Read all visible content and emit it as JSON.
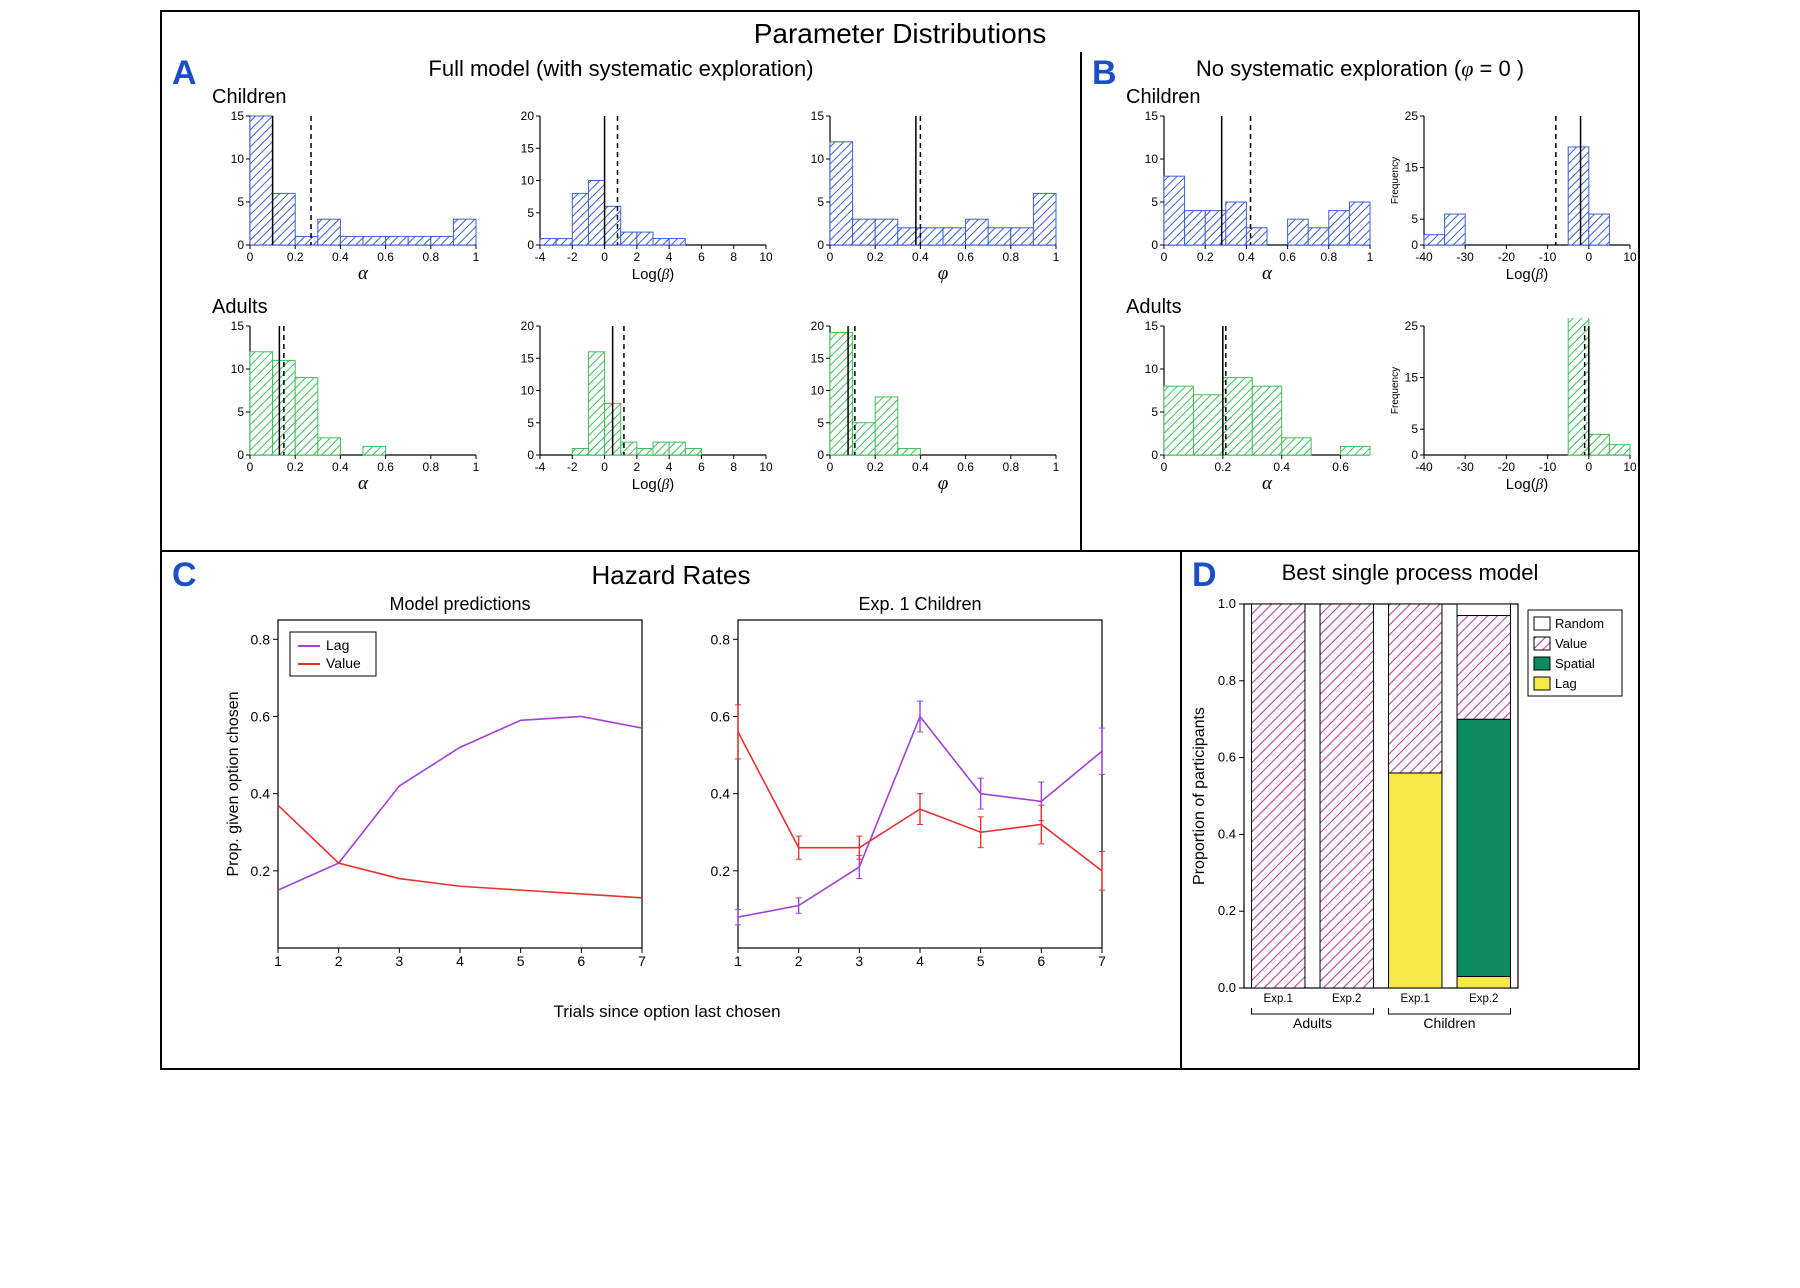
{
  "colors": {
    "blue_line": "#1a4fc7",
    "children_fill": "#ffffff",
    "children_stroke": "#3a5fd8",
    "adult_fill": "#ffffff",
    "adult_stroke": "#3fbf57",
    "lag_line": "#a040d8",
    "value_line": "#e83030",
    "spatial_fill": "#0f8b62",
    "lag_fill": "#f7e749",
    "value_pattern": "#bf3f9d",
    "random_fill": "#ffffff",
    "axis": "#000000",
    "grid": "#d0d0d0"
  },
  "main_title": "Parameter Distributions",
  "panel_A": {
    "label": "A",
    "title": "Full model (with systematic exploration)",
    "rows": [
      {
        "group": "Children",
        "color": "children",
        "hists": [
          {
            "xlabel": "α",
            "greek": true,
            "xlim": [
              0,
              1
            ],
            "xticks": [
              0.0,
              0.2,
              0.4,
              0.6,
              0.8,
              1.0
            ],
            "ylim": [
              0,
              15
            ],
            "yticks": [
              0,
              5,
              10,
              15
            ],
            "bins": [
              15,
              6,
              1,
              3,
              1,
              1,
              1,
              1,
              1,
              3
            ],
            "median": 0.1,
            "mean": 0.27
          },
          {
            "xlabel": "Log(β)",
            "greek": false,
            "xlim": [
              -4,
              10
            ],
            "xticks": [
              -4,
              -2,
              0,
              2,
              4,
              6,
              8,
              10
            ],
            "ylim": [
              0,
              20
            ],
            "yticks": [
              0,
              5,
              10,
              15,
              20
            ],
            "bins": [
              1,
              1,
              8,
              10,
              6,
              2,
              2,
              1,
              1,
              0,
              0,
              0,
              0,
              0
            ],
            "median": 0.0,
            "mean": 0.8
          },
          {
            "xlabel": "φ",
            "greek": true,
            "phi": true,
            "xlim": [
              0,
              1
            ],
            "xticks": [
              0.0,
              0.2,
              0.4,
              0.6,
              0.8,
              1.0
            ],
            "ylim": [
              0,
              15
            ],
            "yticks": [
              0,
              5,
              10,
              15
            ],
            "bins": [
              12,
              3,
              3,
              2,
              2,
              2,
              3,
              2,
              2,
              6
            ],
            "median": 0.38,
            "mean": 0.4
          }
        ]
      },
      {
        "group": "Adults",
        "color": "adults",
        "hists": [
          {
            "xlabel": "α",
            "greek": true,
            "xlim": [
              0,
              1
            ],
            "xticks": [
              0.0,
              0.2,
              0.4,
              0.6,
              0.8,
              1.0
            ],
            "ylim": [
              0,
              15
            ],
            "yticks": [
              0,
              5,
              10,
              15
            ],
            "bins": [
              12,
              11,
              9,
              2,
              0,
              1,
              0,
              0,
              0,
              0
            ],
            "median": 0.13,
            "mean": 0.15
          },
          {
            "xlabel": "Log(β)",
            "greek": false,
            "xlim": [
              -4,
              10
            ],
            "xticks": [
              -4,
              -2,
              0,
              2,
              4,
              6,
              8,
              10
            ],
            "ylim": [
              0,
              20
            ],
            "yticks": [
              0,
              5,
              10,
              15,
              20
            ],
            "bins": [
              0,
              0,
              1,
              16,
              8,
              2,
              1,
              2,
              2,
              1,
              0,
              0,
              0,
              0
            ],
            "median": 0.5,
            "mean": 1.2
          },
          {
            "xlabel": "φ",
            "greek": true,
            "phi": true,
            "xlim": [
              0,
              1
            ],
            "xticks": [
              0.0,
              0.2,
              0.4,
              0.6,
              0.8,
              1.0
            ],
            "ylim": [
              0,
              20
            ],
            "yticks": [
              0,
              5,
              10,
              15,
              20
            ],
            "bins": [
              19,
              5,
              9,
              1,
              0,
              0,
              0,
              0,
              0,
              0
            ],
            "median": 0.08,
            "mean": 0.11
          }
        ]
      }
    ]
  },
  "panel_B": {
    "label": "B",
    "title_prefix": "No systematic exploration (",
    "title_phi": "φ",
    "title_suffix": " = 0 )",
    "rows": [
      {
        "group": "Children",
        "color": "children",
        "hists": [
          {
            "xlabel": "α",
            "greek": true,
            "xlim": [
              0,
              1
            ],
            "xticks": [
              0.0,
              0.2,
              0.4,
              0.6,
              0.8,
              1.0
            ],
            "ylim": [
              0,
              15
            ],
            "yticks": [
              0,
              5,
              10,
              15
            ],
            "bins": [
              8,
              4,
              4,
              5,
              2,
              0,
              3,
              2,
              4,
              5
            ],
            "median": 0.28,
            "mean": 0.42
          },
          {
            "xlabel": "Log(β)",
            "greek": false,
            "ylab": "Frequency",
            "xlim": [
              -40,
              10
            ],
            "xticks": [
              -40,
              -30,
              -20,
              -10,
              0,
              10
            ],
            "ylim": [
              0,
              25
            ],
            "yticks": [
              0,
              5,
              15,
              25
            ],
            "bins": [
              2,
              6,
              0,
              0,
              0,
              0,
              0,
              19,
              6,
              0
            ],
            "binstart": -40,
            "binwidth": 5,
            "median": -2,
            "mean": -8
          }
        ]
      },
      {
        "group": "Adults",
        "color": "adults",
        "hists": [
          {
            "xlabel": "α",
            "greek": true,
            "xlim": [
              0,
              0.7
            ],
            "xticks": [
              0.0,
              0.2,
              0.4,
              0.6
            ],
            "ylim": [
              0,
              15
            ],
            "yticks": [
              0,
              5,
              10,
              15
            ],
            "bins": [
              8,
              7,
              9,
              8,
              2,
              0,
              1
            ],
            "binstart": 0,
            "binwidth": 0.1,
            "median": 0.2,
            "mean": 0.21
          },
          {
            "xlabel": "Log(β)",
            "greek": false,
            "ylab": "Frequency",
            "xlim": [
              -40,
              10
            ],
            "xticks": [
              -40,
              -30,
              -20,
              -10,
              0,
              10
            ],
            "ylim": [
              0,
              25
            ],
            "yticks": [
              0,
              5,
              15,
              25
            ],
            "bins": [
              0,
              0,
              0,
              0,
              0,
              0,
              0,
              27,
              4,
              2
            ],
            "binstart": -40,
            "binwidth": 5,
            "median": 0,
            "mean": -1
          }
        ]
      }
    ]
  },
  "panel_C": {
    "label": "C",
    "title": "Hazard Rates",
    "sub1_title": "Model predictions",
    "sub2_title": "Exp. 1 Children",
    "ylabel": "Prop. given option chosen",
    "xlabel": "Trials since option last chosen",
    "xlim": [
      1,
      7
    ],
    "xticks": [
      1,
      2,
      3,
      4,
      5,
      6,
      7
    ],
    "ylim": [
      0,
      0.85
    ],
    "yticks": [
      0.2,
      0.4,
      0.6,
      0.8
    ],
    "legend": [
      {
        "label": "Lag",
        "color": "lag_line"
      },
      {
        "label": "Value",
        "color": "value_line"
      }
    ],
    "series1": {
      "lag": [
        0.15,
        0.22,
        0.42,
        0.52,
        0.59,
        0.6,
        0.57
      ],
      "value": [
        0.37,
        0.22,
        0.18,
        0.16,
        0.15,
        0.14,
        0.13
      ]
    },
    "series2": {
      "lag": {
        "y": [
          0.08,
          0.11,
          0.21,
          0.6,
          0.4,
          0.38,
          0.51
        ],
        "err": [
          0.02,
          0.02,
          0.03,
          0.04,
          0.04,
          0.05,
          0.06
        ]
      },
      "value": {
        "y": [
          0.56,
          0.26,
          0.26,
          0.36,
          0.3,
          0.32,
          0.2
        ],
        "err": [
          0.07,
          0.03,
          0.03,
          0.04,
          0.04,
          0.05,
          0.05
        ]
      }
    }
  },
  "panel_D": {
    "label": "D",
    "title": "Best single process model",
    "ylabel": "Proportion of participants",
    "ylim": [
      0,
      1
    ],
    "yticks": [
      0.0,
      0.2,
      0.4,
      0.6,
      0.8,
      1.0
    ],
    "categories": [
      "Exp.1",
      "Exp.2",
      "Exp.1",
      "Exp.2"
    ],
    "group_labels": [
      "Adults",
      "Children"
    ],
    "legend": [
      {
        "label": "Random",
        "key": "random"
      },
      {
        "label": "Value",
        "key": "value"
      },
      {
        "label": "Spatial",
        "key": "spatial"
      },
      {
        "label": "Lag",
        "key": "lag"
      }
    ],
    "stacks": [
      {
        "lag": 0.0,
        "spatial": 0.0,
        "value": 1.0,
        "random": 0.0
      },
      {
        "lag": 0.0,
        "spatial": 0.0,
        "value": 1.0,
        "random": 0.0
      },
      {
        "lag": 0.56,
        "spatial": 0.0,
        "value": 0.44,
        "random": 0.0
      },
      {
        "lag": 0.03,
        "spatial": 0.67,
        "value": 0.27,
        "random": 0.03
      }
    ]
  }
}
